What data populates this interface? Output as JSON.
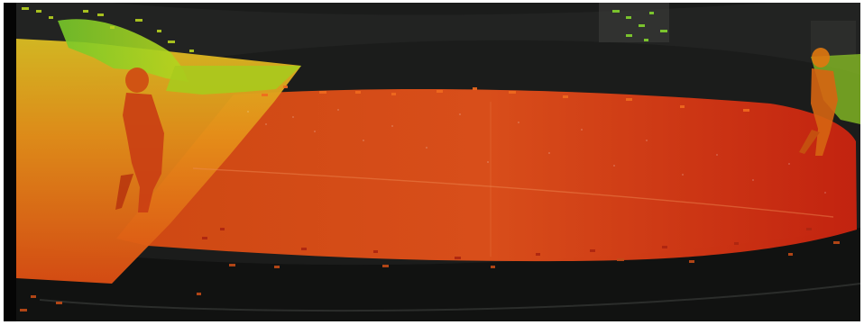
{
  "scene": {
    "kind": "depth-colored point cloud over fisheye camera frame",
    "colors": {
      "background": "#151615",
      "near": "#d0220f",
      "mid": "#e2a11d",
      "far": "#28c42a"
    },
    "visible_text": []
  }
}
